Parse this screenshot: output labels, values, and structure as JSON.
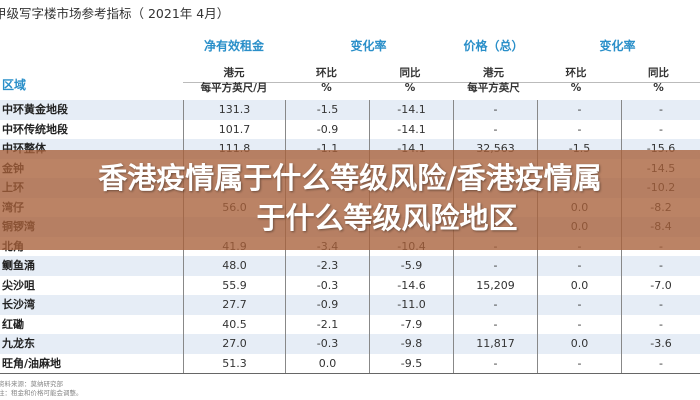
{
  "title": "甲级写字楼市场参考指标（  2021年 4月）",
  "groups": [
    "净有效租金",
    "变化率",
    "价格（总）",
    "变化率"
  ],
  "region_label": "区域",
  "subheaders": [
    [
      "港元",
      "每平方英尺/月"
    ],
    [
      "环比",
      "%"
    ],
    [
      "同比",
      "%"
    ],
    [
      "港元",
      "每平方英尺"
    ],
    [
      "环比",
      "%"
    ],
    [
      "同比",
      "%"
    ]
  ],
  "rows": [
    [
      "中环黄金地段",
      "131.3",
      "-1.5",
      "-14.1",
      "-",
      "-",
      "-"
    ],
    [
      "中环传统地段",
      "101.7",
      "-0.9",
      "-14.1",
      "-",
      "-",
      "-"
    ],
    [
      "中环整体",
      "111.8",
      "-1.1",
      "-14.1",
      "32,563",
      "-1.5",
      "-15.6"
    ],
    [
      "金钟",
      "",
      "",
      "",
      "",
      "",
      "-14.5"
    ],
    [
      "上环",
      "",
      "",
      "",
      "",
      "",
      "-10.2"
    ],
    [
      "湾仔",
      "56.0",
      "",
      "",
      "",
      "0.0",
      "-8.2"
    ],
    [
      "铜锣湾",
      "",
      "",
      "",
      "",
      "0.0",
      "-8.4"
    ],
    [
      "北角",
      "41.9",
      "-3.4",
      "-10.4",
      "-",
      "-",
      "-"
    ],
    [
      "鲗鱼涌",
      "48.0",
      "-2.3",
      "-5.9",
      "-",
      "-",
      "-"
    ],
    [
      "尖沙咀",
      "55.9",
      "-0.3",
      "-14.6",
      "15,209",
      "0.0",
      "-7.0"
    ],
    [
      "长沙湾",
      "27.7",
      "-0.9",
      "-11.0",
      "-",
      "-",
      "-"
    ],
    [
      "红磡",
      "40.5",
      "-2.1",
      "-7.9",
      "-",
      "-",
      "-"
    ],
    [
      "九龙东",
      "27.0",
      "-0.3",
      "-9.8",
      "11,817",
      "0.0",
      "-3.6"
    ],
    [
      "旺角/油麻地",
      "51.3",
      "0.0",
      "-9.5",
      "-",
      "-",
      "-"
    ]
  ],
  "notes": [
    "资料来源：莫纳研究部",
    "注：租金和价格可能会调整。"
  ],
  "overlay": {
    "line1": "香港疫情属于什么等级风险/香港疫情属",
    "line2": "于什么等级风险地区",
    "color": "#a8603a"
  }
}
